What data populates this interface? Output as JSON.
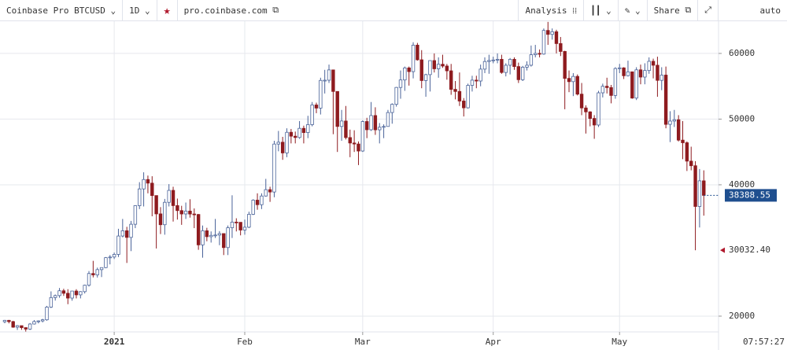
{
  "toolbar": {
    "symbol": "Coinbase Pro BTCUSD",
    "interval": "1D",
    "site": "pro.coinbase.com",
    "analysis": "Analysis",
    "share": "Share",
    "scale": "auto"
  },
  "chart_data": {
    "type": "candlestick",
    "open": [
      19150,
      19360,
      19170,
      18320,
      18550,
      18250,
      18030,
      18800,
      19170,
      19270,
      19440,
      21380,
      22830,
      23130,
      23860,
      23480,
      22750,
      23820,
      23240,
      23730,
      24710,
      26490,
      26280,
      27080,
      27390,
      28900,
      29000,
      29400,
      32200,
      33000,
      31990,
      33990,
      36820,
      39370,
      40800,
      40250,
      38360,
      35570,
      33920,
      37330,
      39150,
      36830,
      36070,
      35560,
      36000,
      35550,
      35480,
      30850,
      33000,
      32100,
      32300,
      32350,
      32570,
      30440,
      33460,
      34320,
      34290,
      33110,
      33540,
      35510,
      37660,
      36970,
      38290,
      39260,
      38900,
      46200,
      46480,
      44850,
      47990,
      47400,
      47200,
      48590,
      47950,
      49160,
      52150,
      51680,
      55890,
      55920,
      57490,
      54210,
      48880,
      49710,
      47190,
      46360,
      46210,
      45140,
      49630,
      48380,
      50540,
      48370,
      48760,
      48880,
      51000,
      52250,
      54820,
      55960,
      57790,
      57230,
      61260,
      59030,
      55870,
      56770,
      58910,
      57660,
      58350,
      58080,
      57350,
      54530,
      54210,
      52750,
      51720,
      55140,
      55930,
      55800,
      57610,
      58770,
      58920,
      59000,
      59100,
      57100,
      58200,
      59100,
      58000,
      56000,
      57900,
      58200,
      59800,
      60000,
      59900,
      63500,
      62900,
      63300,
      61500,
      60300,
      56200,
      55700,
      56500,
      53800,
      51700,
      51100,
      50100,
      49100,
      54000,
      55000,
      54800,
      53600,
      57700,
      57800,
      56600,
      57200,
      53200,
      57500,
      56400,
      57400,
      58800,
      58200,
      55900,
      56700,
      49200,
      49700,
      49900,
      46800,
      46400,
      43600,
      42900,
      36700,
      40600
    ],
    "high": [
      19420,
      19420,
      19290,
      18640,
      18560,
      18290,
      18950,
      19400,
      19350,
      19590,
      21560,
      23770,
      23290,
      24290,
      24170,
      24100,
      23840,
      24100,
      23800,
      24790,
      26870,
      28420,
      27390,
      27400,
      29000,
      29300,
      29680,
      33300,
      34800,
      33600,
      34500,
      36900,
      40400,
      41900,
      41400,
      41300,
      38360,
      36600,
      37850,
      40100,
      39700,
      37900,
      36800,
      37300,
      37800,
      36400,
      35550,
      33800,
      33450,
      32900,
      34800,
      32950,
      32600,
      33800,
      38400,
      34900,
      34300,
      34700,
      35900,
      37800,
      38700,
      38700,
      40900,
      39700,
      46700,
      48200,
      47300,
      48600,
      48500,
      48100,
      49700,
      49000,
      50500,
      52600,
      52500,
      56300,
      57500,
      58300,
      57500,
      54200,
      51400,
      52000,
      48400,
      48300,
      46600,
      49800,
      50200,
      52600,
      51800,
      49400,
      49200,
      51400,
      52400,
      54900,
      57400,
      58000,
      58000,
      61700,
      61600,
      60500,
      56900,
      58900,
      60000,
      59400,
      59800,
      58400,
      58400,
      55800,
      57100,
      53200,
      55400,
      56600,
      56600,
      58300,
      59400,
      59800,
      59500,
      60000,
      59800,
      58500,
      59300,
      59400,
      58600,
      58100,
      58800,
      61200,
      61300,
      60600,
      63800,
      64800,
      63800,
      63600,
      62500,
      60400,
      57400,
      57000,
      56800,
      55500,
      52100,
      51200,
      50600,
      54300,
      55400,
      56300,
      55200,
      57900,
      58400,
      57900,
      58900,
      57200,
      57900,
      58300,
      58500,
      59400,
      59200,
      59500,
      57900,
      58000,
      51200,
      51400,
      50600,
      49700,
      46600,
      45800,
      43600,
      42400,
      42200
    ],
    "low": [
      18920,
      18900,
      18230,
      17900,
      17920,
      17650,
      17900,
      18720,
      18900,
      19050,
      19300,
      21240,
      22370,
      22800,
      23080,
      21820,
      22350,
      22700,
      22700,
      23450,
      24500,
      25900,
      25880,
      25950,
      27300,
      27880,
      28700,
      29000,
      32000,
      28100,
      29900,
      33400,
      36300,
      36700,
      38700,
      35200,
      30300,
      32500,
      32400,
      36700,
      34400,
      34700,
      33900,
      34800,
      35000,
      33400,
      30100,
      28900,
      31400,
      31200,
      31900,
      30800,
      29300,
      29300,
      31900,
      32900,
      32300,
      32400,
      33400,
      35400,
      36200,
      36300,
      38200,
      37400,
      38100,
      45100,
      43800,
      44200,
      46300,
      46300,
      47000,
      46300,
      47100,
      48900,
      50900,
      50700,
      53900,
      55500,
      47700,
      45000,
      46700,
      46900,
      44200,
      45000,
      43000,
      45000,
      47100,
      48200,
      47600,
      46300,
      47100,
      48900,
      49300,
      51900,
      53100,
      54300,
      55100,
      56200,
      58900,
      54700,
      53400,
      54200,
      57100,
      56300,
      57800,
      56000,
      53700,
      53000,
      52000,
      50400,
      51600,
      54200,
      54700,
      55000,
      57000,
      56900,
      58500,
      58500,
      56900,
      56500,
      56800,
      57500,
      55500,
      55800,
      57400,
      58000,
      59400,
      59400,
      59800,
      61300,
      62100,
      60000,
      59600,
      51500,
      54100,
      53500,
      53600,
      50600,
      47800,
      48900,
      47000,
      48800,
      53300,
      53900,
      52400,
      53100,
      57000,
      56100,
      56500,
      53100,
      52900,
      55300,
      55300,
      56900,
      56200,
      53400,
      54400,
      48600,
      46500,
      48800,
      46600,
      43900,
      42100,
      42200,
      30032.4,
      33500,
      35300
    ],
    "close": [
      19360,
      19170,
      18320,
      18550,
      18250,
      18030,
      18800,
      19170,
      19270,
      19440,
      21380,
      22830,
      23130,
      23860,
      23480,
      22750,
      23820,
      23240,
      23730,
      24710,
      26490,
      26280,
      27080,
      27390,
      28900,
      29000,
      29400,
      32200,
      33000,
      31990,
      33990,
      36820,
      39370,
      40800,
      40250,
      38360,
      35570,
      33920,
      37330,
      39150,
      36830,
      36070,
      35560,
      36000,
      35550,
      35480,
      30850,
      33000,
      32100,
      32300,
      32350,
      32570,
      30440,
      33460,
      34320,
      34290,
      33110,
      33540,
      35510,
      37660,
      36970,
      38290,
      39260,
      38900,
      46200,
      46480,
      44850,
      47990,
      47400,
      47200,
      48590,
      47950,
      49160,
      52150,
      51680,
      55890,
      55920,
      57490,
      54210,
      48880,
      49710,
      47190,
      46360,
      46210,
      45140,
      49630,
      48380,
      50540,
      48370,
      48760,
      48880,
      51000,
      52250,
      54820,
      55960,
      57790,
      57230,
      61260,
      59030,
      55870,
      56770,
      58910,
      57660,
      58350,
      58080,
      57350,
      54530,
      54210,
      52750,
      51720,
      55140,
      55930,
      55800,
      57610,
      58770,
      58920,
      59000,
      59100,
      57100,
      58200,
      59100,
      58000,
      56000,
      57900,
      58200,
      59800,
      60000,
      59900,
      63500,
      62900,
      63300,
      61500,
      60300,
      56200,
      55700,
      56500,
      53800,
      51700,
      51100,
      50100,
      49100,
      54000,
      55000,
      54800,
      53600,
      57700,
      57800,
      56600,
      57200,
      53200,
      57500,
      56400,
      57400,
      58800,
      58200,
      55900,
      56700,
      49200,
      49700,
      49900,
      46800,
      46400,
      43600,
      42900,
      36700,
      40600,
      38388.55
    ],
    "up_color": "#ffffff",
    "up_outline": "#4a6399",
    "down_color": "#8e1b1f",
    "xlim": [
      -1.12,
      169.5
    ],
    "ylim": [
      17600,
      64900
    ],
    "xticks": [
      {
        "value": 26,
        "label": "2021"
      },
      {
        "value": 57,
        "label": "Feb"
      },
      {
        "value": 85,
        "label": "Mar"
      },
      {
        "value": 116,
        "label": "Apr"
      },
      {
        "value": 146,
        "label": "May"
      }
    ],
    "yticks": [
      20000,
      40000,
      50000,
      60000
    ],
    "grid": true,
    "last_price": 38388.55,
    "last_price_color": "#1f4f8f",
    "low_marker": {
      "value": 30032.4,
      "label": "30032.40"
    },
    "low_marker_color": "#b0182c",
    "time": "07:57:27"
  }
}
